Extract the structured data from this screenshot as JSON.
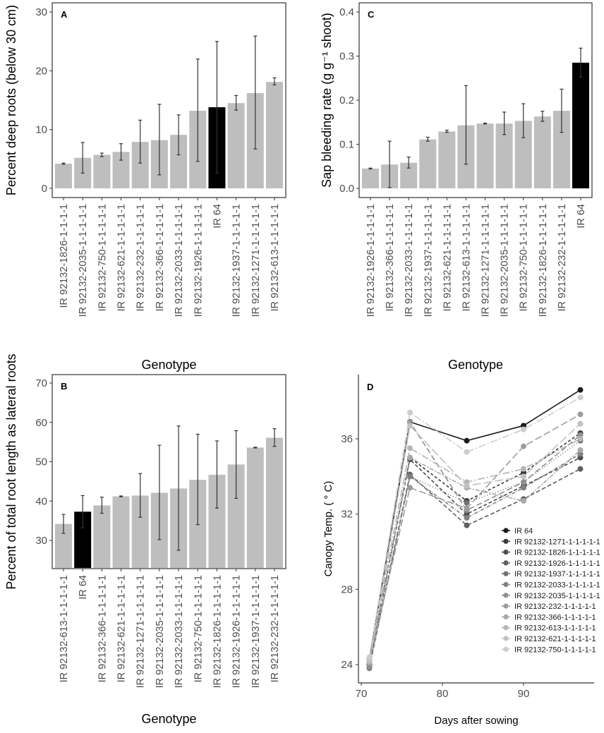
{
  "colors": {
    "bar": "#bebebe",
    "highlight": "#000000",
    "error": "#333333",
    "frame": "#333333"
  },
  "chart_data": [
    {
      "panel": "A",
      "type": "bar",
      "ylabel": "Percent deep roots (below 30 cm)",
      "xlabel": "Genotype",
      "ylim": [
        0,
        30
      ],
      "yticks": [
        0,
        10,
        20,
        30
      ],
      "highlight": "IR 64",
      "categories": [
        "IR 92132-1826-1-1-1-1",
        "IR 92132-2035-1-1-1-1-1",
        "IR 92132-750-1-1-1-1-1",
        "IR 92132-621-1-1-1-1-1",
        "IR 92132-232-1-1-1-1-1",
        "IR 92132-366-1-1-1-1-1",
        "IR 92132-2033-1-1-1-1-1",
        "IR 92132-1926-1-1-1-1-1",
        "IR 64",
        "IR 92132-1937-1-1-1-1-1",
        "IR 92132-1271-1-1-1-1-1",
        "IR 92132-613-1-1-1-1-1"
      ],
      "values": [
        4.2,
        5.2,
        5.7,
        6.2,
        7.9,
        8.2,
        9.1,
        13.2,
        13.8,
        14.5,
        16.2,
        18.1
      ],
      "err_low": [
        4.1,
        2.6,
        5.4,
        4.8,
        4.3,
        2.3,
        5.7,
        4.6,
        2.6,
        13.3,
        6.7,
        17.6
      ],
      "err_high": [
        4.3,
        7.8,
        6.0,
        7.6,
        11.6,
        14.3,
        12.5,
        22.0,
        25.0,
        15.8,
        25.9,
        18.8
      ]
    },
    {
      "panel": "C",
      "type": "bar",
      "ylabel": "Sap bleeding rate (g g⁻¹ shoot)",
      "xlabel": "Genotype",
      "ylim": [
        0,
        0.4
      ],
      "yticks": [
        0.0,
        0.1,
        0.2,
        0.3,
        0.4
      ],
      "highlight": "IR 64",
      "categories": [
        "IR 92132-1926-1-1-1-1-1",
        "IR 92132-366-1-1-1-1-1",
        "IR 92132-2033-1-1-1-1-1",
        "IR 92132-1937-1-1-1-1-1",
        "IR 92132-621-1-1-1-1-1",
        "IR 92132-613-1-1-1-1-1",
        "IR 92132-1271-1-1-1-1-1",
        "IR 92132-2035-1-1-1-1-1",
        "IR 92132-750-1-1-1-1-1",
        "IR 92132-1826-1-1-1-1-1",
        "IR 92132-232-1-1-1-1-1",
        "IR 64"
      ],
      "values": [
        0.045,
        0.054,
        0.058,
        0.111,
        0.129,
        0.143,
        0.147,
        0.147,
        0.153,
        0.163,
        0.176,
        0.285
      ],
      "err_low": [
        0.044,
        0.002,
        0.046,
        0.107,
        0.127,
        0.055,
        0.146,
        0.122,
        0.115,
        0.152,
        0.127,
        0.252
      ],
      "err_high": [
        0.046,
        0.107,
        0.071,
        0.116,
        0.132,
        0.233,
        0.148,
        0.173,
        0.192,
        0.175,
        0.225,
        0.318
      ]
    },
    {
      "panel": "B",
      "type": "bar",
      "ylabel": "Percent of total root length as lateral roots",
      "xlabel": "Genotype",
      "ylim": [
        23,
        72
      ],
      "yticks": [
        30,
        40,
        50,
        60,
        70
      ],
      "highlight": "IR 64",
      "categories": [
        "IR 92132-613-1-1-1-1-1",
        "IR 64",
        "IR 92132-366-1-1-1-1-1",
        "IR 92132-621-1-1-1-1-1",
        "IR 92132-1271-1-1-1-1-1",
        "IR 92132-2035-1-1-1-1-1",
        "IR 92132-2033-1-1-1-1-1",
        "IR 92132-750-1-1-1-1-1",
        "IR 92132-1826-1-1-1-1-1",
        "IR 92132-1926-1-1-1-1-1",
        "IR 92132-1937-1-1-1-1-1",
        "IR 92132-232-1-1-1-1-1"
      ],
      "values": [
        34.2,
        37.3,
        38.9,
        41.2,
        41.4,
        42.1,
        43.2,
        45.4,
        46.7,
        49.3,
        53.6,
        56.1
      ],
      "err_low": [
        31.8,
        33.2,
        36.9,
        41.1,
        35.9,
        30.2,
        27.5,
        34.0,
        38.2,
        40.7,
        53.5,
        53.9
      ],
      "err_high": [
        36.6,
        41.4,
        41.0,
        41.3,
        47.0,
        54.2,
        59.1,
        57.0,
        55.3,
        57.9,
        53.7,
        58.4
      ]
    },
    {
      "panel": "D",
      "type": "line",
      "ylabel": "Canopy Temp. ( ° C)",
      "xlabel": "Days after sowing",
      "xlim": [
        70,
        98
      ],
      "ylim": [
        23.5,
        39.2
      ],
      "xticks": [
        70,
        80,
        90
      ],
      "yticks": [
        24,
        28,
        32,
        36
      ],
      "legend_position": "bottom-right",
      "x": [
        71,
        76,
        83,
        90,
        97
      ],
      "series": [
        {
          "name": "IR 64",
          "values": [
            24.3,
            36.9,
            35.9,
            36.7,
            38.6
          ]
        },
        {
          "name": "IR 92132-1271-1-1-1-1-1",
          "values": [
            24.0,
            35.0,
            32.7,
            34.2,
            36.3
          ]
        },
        {
          "name": "IR 92132-1826-1-1-1-1-1",
          "values": [
            24.1,
            34.9,
            32.0,
            33.5,
            35.0
          ]
        },
        {
          "name": "IR 92132-1926-1-1-1-1-1",
          "values": [
            23.9,
            34.1,
            31.4,
            32.8,
            34.4
          ]
        },
        {
          "name": "IR 92132-1937-1-1-1-1-1",
          "values": [
            24.0,
            34.0,
            32.6,
            33.7,
            35.9
          ]
        },
        {
          "name": "IR 92132-2033-1-1-1-1-1",
          "values": [
            23.8,
            34.0,
            31.8,
            33.4,
            35.2
          ]
        },
        {
          "name": "IR 92132-2035-1-1-1-1-1",
          "values": [
            23.9,
            36.9,
            32.2,
            33.7,
            36.2
          ]
        },
        {
          "name": "IR 92132-232-1-1-1-1-1",
          "values": [
            24.2,
            33.4,
            32.3,
            35.6,
            37.3
          ]
        },
        {
          "name": "IR 92132-366-1-1-1-1-1",
          "values": [
            24.1,
            35.0,
            33.4,
            32.7,
            35.4
          ]
        },
        {
          "name": "IR 92132-613-1-1-1-1-1",
          "values": [
            24.3,
            35.5,
            33.7,
            34.4,
            36.0
          ]
        },
        {
          "name": "IR 92132-621-1-1-1-1-1",
          "values": [
            24.2,
            36.7,
            33.5,
            34.0,
            36.8
          ]
        },
        {
          "name": "IR 92132-750-1-1-1-1-1",
          "values": [
            24.4,
            37.4,
            35.3,
            36.5,
            38.2
          ]
        }
      ],
      "series_colors": [
        "#1a1a1a",
        "#3a3a3a",
        "#4d4d4d",
        "#5f5f5f",
        "#707070",
        "#808080",
        "#8e8e8e",
        "#9c9c9c",
        "#a9a9a9",
        "#b5b5b5",
        "#c1c1c1",
        "#cccccc"
      ]
    }
  ]
}
